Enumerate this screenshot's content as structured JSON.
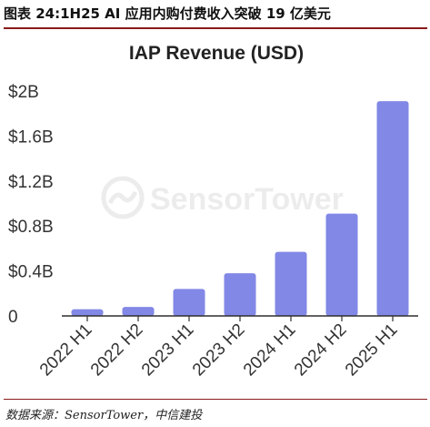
{
  "figure": {
    "header": "图表 24:1H25 AI 应用内购付费收入突破 19 亿美元",
    "source": "数据来源：SensorTower，中信建投"
  },
  "watermark": "SensorTower",
  "colors": {
    "bar": "#8288e6",
    "rule": "#8a1a1a",
    "axis": "#2f2f2f"
  },
  "chart_data": {
    "type": "bar",
    "title": "IAP Revenue (USD)",
    "xlabel": "",
    "ylabel": "",
    "categories": [
      "2022 H1",
      "2022 H2",
      "2023 H1",
      "2023 H2",
      "2024 H1",
      "2024 H2",
      "2025 H1"
    ],
    "values": [
      0.06,
      0.08,
      0.24,
      0.38,
      0.57,
      0.91,
      1.91
    ],
    "ylim": [
      0,
      2
    ],
    "yticks": [
      0,
      0.4,
      0.8,
      1.2,
      1.6,
      2
    ],
    "ytick_labels": [
      "0",
      "$0.4B",
      "$0.8B",
      "$1.2B",
      "$1.6B",
      "$2B"
    ],
    "grid": false,
    "legend": "none"
  }
}
